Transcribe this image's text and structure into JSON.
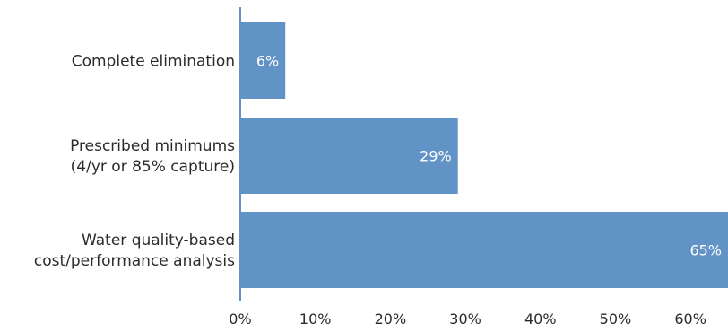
{
  "chart_data": {
    "type": "bar",
    "orientation": "horizontal",
    "categories": [
      [
        "Complete elimination"
      ],
      [
        "Prescribed minimums",
        "(4/yr or 85% capture)"
      ],
      [
        "Water quality-based",
        "cost/performance analysis"
      ]
    ],
    "values": [
      6,
      29,
      65
    ],
    "data_labels": [
      "6%",
      "29%",
      "65%"
    ],
    "x_ticks": [
      "0%",
      "10%",
      "20%",
      "30%",
      "40%",
      "50%",
      "60%"
    ],
    "x_tick_values": [
      0,
      10,
      20,
      30,
      40,
      50,
      60
    ],
    "xlim": [
      0,
      65
    ],
    "title": "",
    "xlabel": "",
    "ylabel": "",
    "grid": false,
    "legend": "none",
    "colors": {
      "bar": "#6193c7",
      "axis": "#6193c7",
      "text": "#2b2b2b",
      "data_label": "#ffffff"
    }
  }
}
